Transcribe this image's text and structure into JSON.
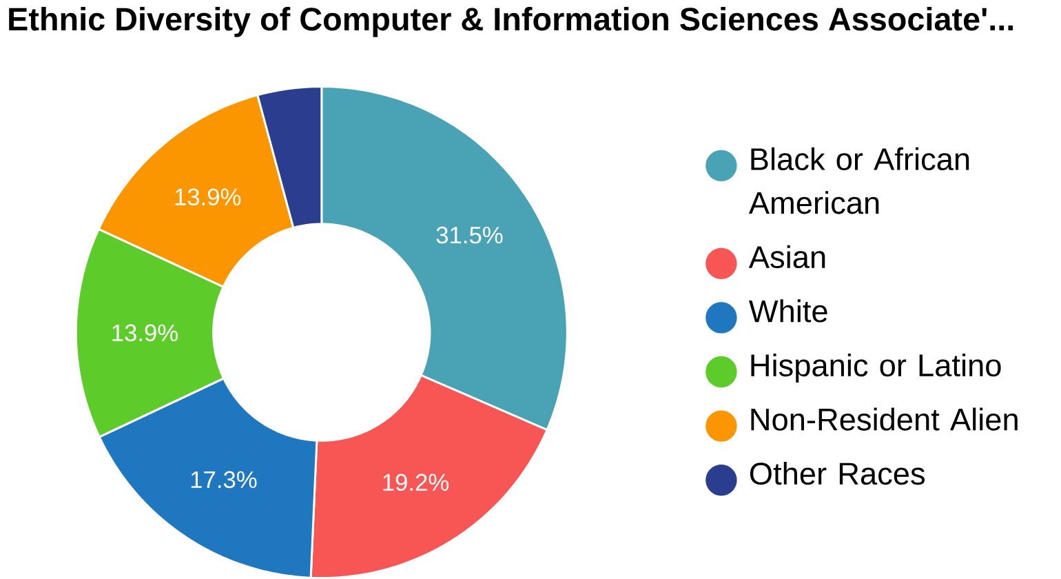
{
  "chart_data": {
    "type": "donut",
    "title": "Ethnic Diversity of Computer & Information Sciences Associate'...",
    "categories": [
      "Black or African American",
      "Asian",
      "White",
      "Hispanic or Latino",
      "Non-Resident Alien",
      "Other Races"
    ],
    "values": [
      31.5,
      19.2,
      17.3,
      13.9,
      13.9,
      4.2
    ],
    "colors": [
      "#4aa3b5",
      "#f85555",
      "#1f77c0",
      "#5dcb2a",
      "#fb9500",
      "#2b3d8f"
    ],
    "value_labels": [
      "31.5%",
      "19.2%",
      "17.3%",
      "13.9%",
      "13.9%",
      null
    ],
    "legend": "right"
  }
}
